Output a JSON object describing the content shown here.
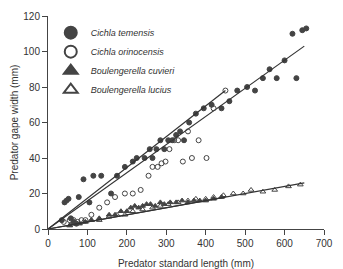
{
  "chart_data": {
    "type": "scatter",
    "title": "",
    "xlabel": "Predator standard length (mm)",
    "ylabel": "Predator gape width (mm)",
    "xlim": [
      0,
      700
    ],
    "ylim": [
      0,
      120
    ],
    "xticks": [
      0,
      100,
      200,
      300,
      400,
      500,
      600,
      700
    ],
    "yticks": [
      0,
      20,
      40,
      60,
      80,
      100,
      120
    ],
    "grid": false,
    "legend": "upper left",
    "series": [
      {
        "name": "Cichla temensis",
        "type": "scatter",
        "marker": "circle",
        "color": "#444444",
        "x": [
          35,
          42,
          47,
          52,
          58,
          65,
          72,
          78,
          90,
          105,
          115,
          135,
          160,
          175,
          195,
          215,
          225,
          245,
          258,
          265,
          275,
          285,
          295,
          305,
          315,
          325,
          335,
          345,
          358,
          375,
          395,
          415,
          440,
          460,
          480,
          505,
          525,
          545,
          562,
          580,
          600,
          620,
          630,
          645,
          655
        ],
        "values": [
          5,
          15,
          16,
          17,
          6,
          4,
          3,
          18,
          28,
          15,
          30,
          30,
          20,
          30,
          35,
          38,
          40,
          40,
          45,
          40,
          45,
          50,
          45,
          50,
          50,
          53,
          55,
          50,
          60,
          65,
          68,
          70,
          68,
          72,
          78,
          80,
          78,
          85,
          90,
          85,
          95,
          110,
          85,
          112,
          113
        ]
      },
      {
        "type": "line",
        "color": "#333333",
        "x": [
          0,
          650
        ],
        "values": [
          0,
          103.025
        ]
      },
      {
        "name": "Cichla orinocensis",
        "type": "scatter",
        "marker": "circle-open",
        "color": "#444444",
        "x": [
          40,
          55,
          65,
          75,
          85,
          95,
          110,
          130,
          150,
          170,
          195,
          215,
          235,
          255,
          265,
          278,
          288,
          298,
          308,
          320,
          330,
          342,
          355,
          365,
          382,
          402,
          420,
          450
        ],
        "values": [
          4,
          5,
          5,
          4,
          5,
          5,
          8,
          12,
          15,
          18,
          20,
          20,
          22,
          30,
          35,
          35,
          37,
          38,
          45,
          50,
          50,
          38,
          55,
          40,
          50,
          40,
          68,
          78
        ]
      },
      {
        "type": "line",
        "color": "#333333",
        "x": [
          0,
          450
        ],
        "values": [
          0,
          77.985
        ]
      },
      {
        "name": "Boulengerella cuvieri",
        "type": "scatter",
        "marker": "triangle-up",
        "color": "#444444",
        "x": [
          55,
          65,
          80,
          95,
          110,
          130,
          155,
          170,
          185,
          200,
          210,
          220,
          230,
          240,
          250,
          260,
          272,
          285,
          295,
          310,
          325,
          340,
          355,
          370,
          385,
          400,
          420,
          440
        ],
        "values": [
          2,
          3,
          3,
          4,
          5,
          6,
          8,
          8,
          10,
          10,
          12,
          13,
          12,
          13,
          14,
          14,
          13,
          15,
          14,
          15,
          15,
          16,
          15,
          16,
          16,
          16,
          17,
          18
        ]
      },
      {
        "type": "line",
        "color": "#333333",
        "x": [
          0,
          450
        ],
        "values": [
          0,
          18
        ]
      },
      {
        "name": "Boulengerella lucius",
        "type": "scatter",
        "marker": "triangle-up-open",
        "color": "#444444",
        "x": [
          55,
          70,
          90,
          110,
          130,
          155,
          175,
          195,
          215,
          240,
          265,
          285,
          305,
          330,
          355,
          375,
          400,
          420,
          445,
          470,
          495,
          515,
          545,
          575,
          610,
          640
        ],
        "values": [
          2,
          3,
          4,
          5,
          5,
          7,
          8,
          8,
          10,
          11,
          12,
          13,
          14,
          15,
          16,
          17,
          17,
          18,
          19,
          20,
          20,
          22,
          21,
          22,
          24,
          25
        ]
      },
      {
        "type": "line",
        "color": "#333333",
        "x": [
          0,
          650
        ],
        "values": [
          0,
          26
        ]
      }
    ]
  }
}
